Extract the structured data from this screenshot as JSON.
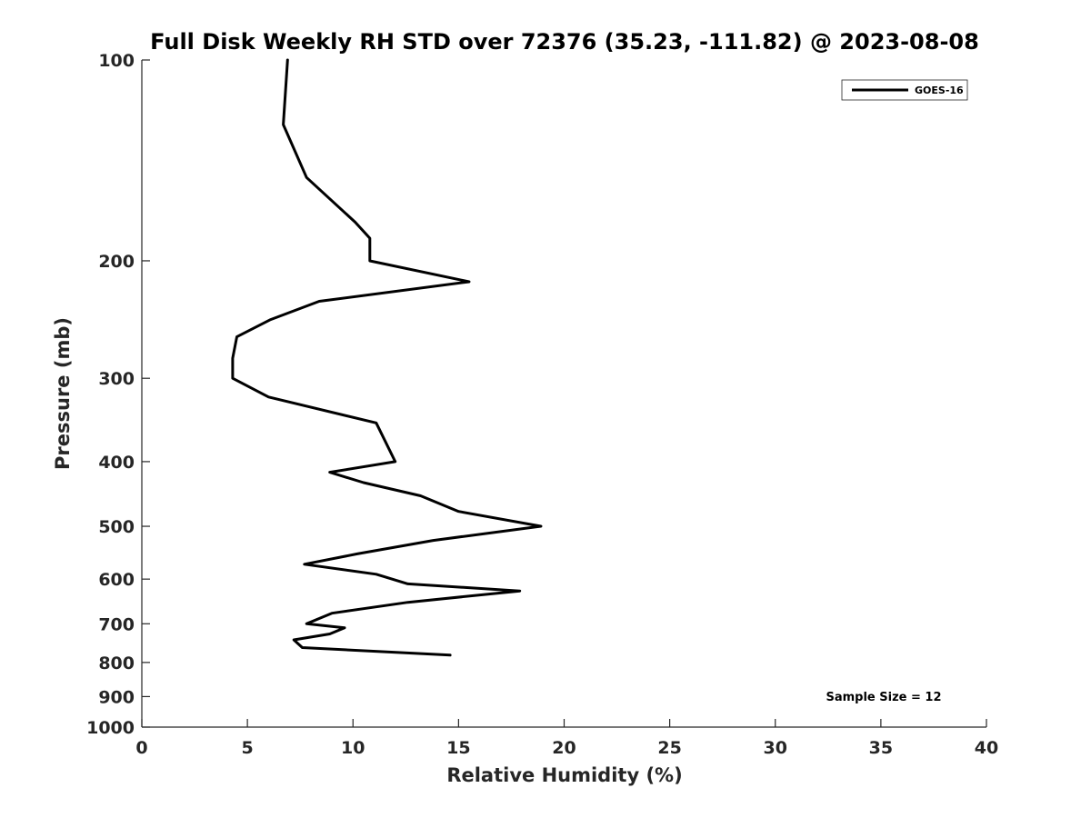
{
  "chart_data": {
    "type": "line",
    "title": "Full Disk Weekly RH STD over 72376 (35.23, -111.82) @ 2023-08-08",
    "xlabel": "Relative Humidity (%)",
    "ylabel": "Pressure (mb)",
    "xlim": [
      0,
      40
    ],
    "ylim": [
      100,
      1000
    ],
    "y_scale": "log",
    "y_reversed": true,
    "x_ticks": [
      0,
      5,
      10,
      15,
      20,
      25,
      30,
      35,
      40
    ],
    "y_ticks": [
      100,
      200,
      300,
      400,
      500,
      600,
      700,
      800,
      900,
      1000
    ],
    "grid": false,
    "legend_position": "top-right",
    "annotation": "Sample Size = 12",
    "colors": {
      "line": "#000000",
      "axis": "#262626"
    },
    "series": [
      {
        "name": "GOES-16",
        "points": [
          {
            "x": 6.9,
            "y": 100
          },
          {
            "x": 6.7,
            "y": 125
          },
          {
            "x": 7.8,
            "y": 150
          },
          {
            "x": 10.1,
            "y": 175
          },
          {
            "x": 10.8,
            "y": 185
          },
          {
            "x": 10.8,
            "y": 200
          },
          {
            "x": 15.5,
            "y": 215
          },
          {
            "x": 8.4,
            "y": 230
          },
          {
            "x": 6.1,
            "y": 245
          },
          {
            "x": 4.5,
            "y": 260
          },
          {
            "x": 4.3,
            "y": 280
          },
          {
            "x": 4.3,
            "y": 300
          },
          {
            "x": 6.0,
            "y": 320
          },
          {
            "x": 11.1,
            "y": 350
          },
          {
            "x": 12.0,
            "y": 400
          },
          {
            "x": 8.9,
            "y": 415
          },
          {
            "x": 10.5,
            "y": 430
          },
          {
            "x": 13.2,
            "y": 450
          },
          {
            "x": 15.0,
            "y": 475
          },
          {
            "x": 18.9,
            "y": 500
          },
          {
            "x": 13.8,
            "y": 525
          },
          {
            "x": 10.2,
            "y": 550
          },
          {
            "x": 7.7,
            "y": 570
          },
          {
            "x": 11.1,
            "y": 590
          },
          {
            "x": 12.6,
            "y": 610
          },
          {
            "x": 17.9,
            "y": 625
          },
          {
            "x": 12.6,
            "y": 650
          },
          {
            "x": 9.0,
            "y": 675
          },
          {
            "x": 7.8,
            "y": 700
          },
          {
            "x": 9.6,
            "y": 710
          },
          {
            "x": 8.9,
            "y": 725
          },
          {
            "x": 7.2,
            "y": 740
          },
          {
            "x": 7.6,
            "y": 760
          },
          {
            "x": 14.6,
            "y": 780
          }
        ]
      }
    ]
  }
}
